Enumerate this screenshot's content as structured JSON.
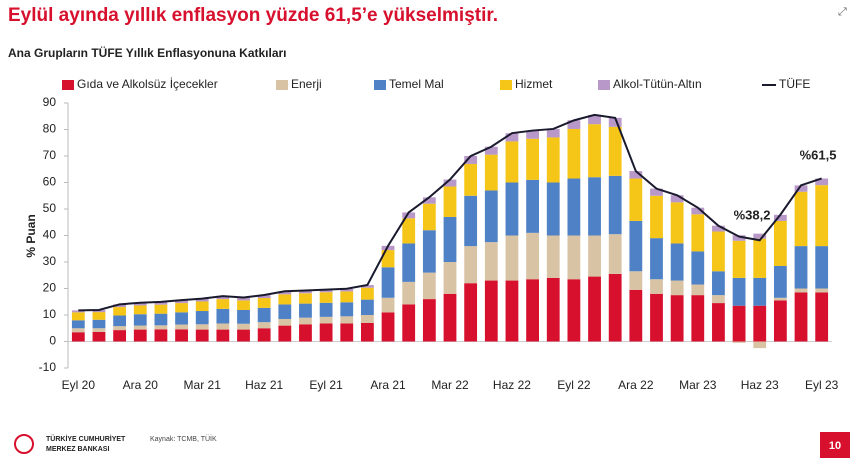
{
  "chart_data": {
    "type": "stacked_bar_line",
    "title": "Eylül ayında yıllık enflasyon yüzde 61,5’e yükselmiştir.",
    "subtitle": "Ana Grupların TÜFE Yıllık Enflasyonuna Katkıları",
    "y_label": "% Puan",
    "categories": [
      "Eyl 20",
      null,
      null,
      "Ara 20",
      null,
      null,
      "Mar 21",
      null,
      null,
      "Haz 21",
      null,
      null,
      "Eyl 21",
      null,
      null,
      "Ara 21",
      null,
      null,
      "Mar 22",
      null,
      null,
      "Haz 22",
      null,
      null,
      "Eyl 22",
      null,
      null,
      "Ara 22",
      null,
      null,
      "Mar 23",
      null,
      null,
      "Haz 23",
      null,
      null,
      "Eyl 23"
    ],
    "series": [
      {
        "name": "Gıda ve Alkolsüz İçecekler",
        "color": "#d7102e",
        "values": [
          3.5,
          3.6,
          4.3,
          4.5,
          4.6,
          4.6,
          4.5,
          4.5,
          4.5,
          5.0,
          6.0,
          6.5,
          6.8,
          6.8,
          7.0,
          11.0,
          14.0,
          16.0,
          18.0,
          22.0,
          23.0,
          23.0,
          23.5,
          24.0,
          23.5,
          24.5,
          25.5,
          19.5,
          18.0,
          17.5,
          17.5,
          14.5,
          13.5,
          13.5,
          15.5,
          18.5,
          18.5
        ]
      },
      {
        "name": "Enerji",
        "color": "#d9c3a5",
        "values": [
          1.5,
          1.4,
          1.5,
          1.5,
          1.5,
          1.8,
          2.0,
          2.3,
          2.2,
          2.3,
          2.5,
          2.5,
          2.5,
          2.7,
          3.0,
          5.5,
          8.5,
          10.0,
          12.0,
          14.0,
          14.5,
          17.0,
          17.5,
          16.0,
          16.5,
          15.5,
          15.0,
          7.0,
          5.5,
          5.5,
          4.0,
          3.0,
          -0.5,
          -2.5,
          1.0,
          1.5,
          1.5
        ]
      },
      {
        "name": "Temel Mal",
        "color": "#4f81c6",
        "values": [
          3.0,
          3.2,
          4.0,
          4.3,
          4.4,
          4.6,
          5.0,
          5.5,
          5.2,
          5.4,
          5.5,
          5.3,
          5.3,
          5.3,
          5.8,
          11.5,
          14.5,
          16.0,
          17.0,
          19.0,
          19.5,
          20.0,
          20.0,
          20.0,
          21.5,
          22.0,
          22.0,
          19.0,
          15.5,
          14.0,
          12.5,
          9.0,
          10.5,
          10.5,
          12.0,
          16.0,
          16.0
        ]
      },
      {
        "name": "Hizmet",
        "color": "#f5c518",
        "values": [
          3.0,
          2.9,
          3.2,
          3.3,
          3.4,
          3.5,
          3.6,
          3.7,
          3.6,
          3.7,
          3.8,
          3.9,
          4.0,
          4.1,
          4.5,
          6.5,
          9.5,
          10.0,
          11.5,
          12.0,
          13.5,
          15.5,
          15.5,
          17.0,
          18.7,
          20.0,
          18.5,
          16.0,
          16.0,
          15.5,
          14.0,
          15.0,
          14.0,
          14.8,
          17.0,
          20.5,
          23.0
        ]
      },
      {
        "name": "Alkol-Tütün-Altın",
        "color": "#b898c8",
        "values": [
          0.75,
          0.8,
          1.0,
          1.0,
          1.1,
          1.1,
          1.1,
          1.1,
          1.1,
          1.1,
          1.1,
          1.1,
          1.0,
          1.0,
          1.0,
          1.6,
          2.2,
          2.4,
          2.6,
          3.0,
          3.0,
          3.1,
          3.1,
          3.2,
          3.3,
          3.5,
          3.4,
          2.8,
          2.7,
          2.7,
          2.5,
          2.2,
          2.1,
          1.9,
          2.3,
          2.4,
          2.5
        ]
      }
    ],
    "line": {
      "name": "TÜFE",
      "color": "#1a1a2e",
      "values": [
        11.75,
        11.89,
        14.03,
        14.6,
        14.97,
        15.61,
        16.19,
        17.14,
        16.59,
        17.53,
        18.95,
        19.25,
        19.58,
        19.89,
        21.31,
        36.08,
        48.69,
        54.44,
        61.14,
        69.97,
        73.5,
        78.62,
        79.6,
        80.21,
        83.45,
        85.51,
        84.39,
        64.27,
        57.68,
        55.18,
        50.51,
        43.68,
        39.59,
        38.21,
        47.83,
        58.94,
        61.53
      ]
    },
    "annotations": [
      "%38,2",
      "%61,5"
    ],
    "ylim": [
      -10,
      90
    ],
    "yticks": [
      -10,
      0,
      10,
      20,
      30,
      40,
      50,
      60,
      70,
      80,
      90
    ],
    "source": "Kaynak: TCMB, TÜİK",
    "logo_lines": [
      "TÜRKİYE CUMHURİYET",
      "MERKEZ BANKASI"
    ],
    "page_number": "10"
  }
}
